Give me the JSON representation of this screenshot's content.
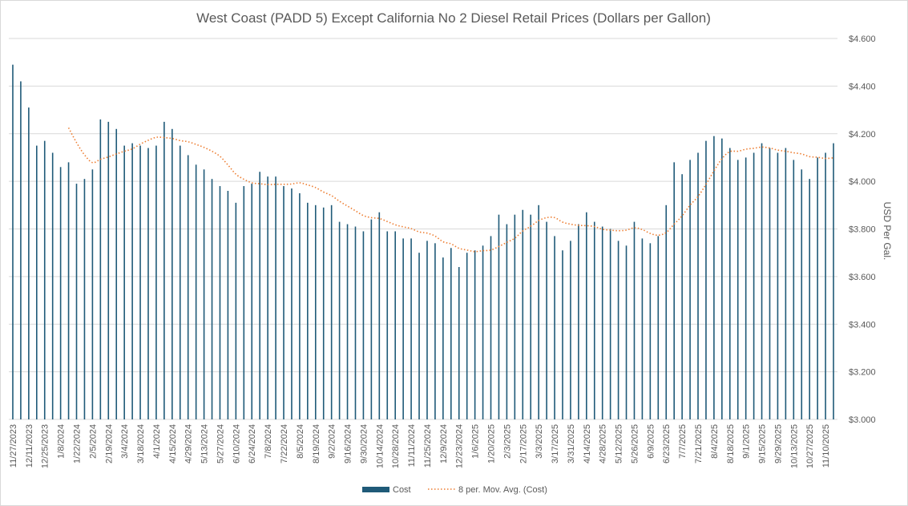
{
  "chart_data": {
    "type": "bar",
    "title": "West Coast (PADD 5) Except California No 2 Diesel Retail Prices (Dollars per Gallon)",
    "ylabel": "USD Per Gal.",
    "xlabel": "",
    "ylim": [
      3.0,
      4.6
    ],
    "y_ticks": [
      "$3.000",
      "$3.200",
      "$3.400",
      "$3.600",
      "$3.800",
      "$4.000",
      "$4.200",
      "$4.400",
      "$4.600"
    ],
    "y_tick_values": [
      3.0,
      3.2,
      3.4,
      3.6,
      3.8,
      4.0,
      4.2,
      4.4,
      4.6
    ],
    "x_tick_labels": [
      "11/27/2023",
      "12/11/2023",
      "12/25/2023",
      "1/8/2024",
      "1/22/2024",
      "2/5/2024",
      "2/19/2024",
      "3/4/2024",
      "3/18/2024",
      "4/1/2024",
      "4/15/2024",
      "4/29/2024",
      "5/13/2024",
      "5/27/2024",
      "6/10/2024",
      "6/24/2024",
      "7/8/2024",
      "7/22/2024",
      "8/5/2024",
      "8/19/2024",
      "9/2/2024",
      "9/16/2024",
      "9/30/2024",
      "10/14/2024",
      "10/28/2024",
      "11/11/2024",
      "11/25/2024",
      "12/9/2024",
      "12/23/2024",
      "1/6/2025",
      "1/20/2025",
      "2/3/2025",
      "2/17/2025",
      "3/3/2025",
      "3/17/2025",
      "3/31/2025",
      "4/14/2025",
      "4/28/2025",
      "5/12/2025",
      "5/26/2025",
      "6/9/2025",
      "6/23/2025",
      "7/7/2025",
      "7/21/2025",
      "8/4/2025",
      "8/18/2025",
      "9/1/2025",
      "9/15/2025",
      "9/29/2025",
      "10/13/2025",
      "10/27/2025",
      "11/10/2025"
    ],
    "legend_position": "bottom",
    "grid": true,
    "series": [
      {
        "name": "Cost",
        "type": "bar",
        "color": "#1f5a78",
        "values": [
          4.49,
          4.42,
          4.31,
          4.15,
          4.17,
          4.12,
          4.06,
          4.08,
          3.99,
          4.01,
          4.05,
          4.26,
          4.25,
          4.22,
          4.15,
          4.16,
          4.15,
          4.14,
          4.15,
          4.25,
          4.22,
          4.15,
          4.11,
          4.07,
          4.05,
          4.01,
          3.98,
          3.96,
          3.91,
          3.98,
          3.99,
          4.04,
          4.02,
          4.02,
          3.98,
          3.97,
          3.95,
          3.91,
          3.9,
          3.89,
          3.9,
          3.83,
          3.82,
          3.81,
          3.79,
          3.84,
          3.87,
          3.79,
          3.79,
          3.76,
          3.76,
          3.7,
          3.75,
          3.74,
          3.68,
          3.72,
          3.64,
          3.7,
          3.71,
          3.73,
          3.77,
          3.86,
          3.82,
          3.86,
          3.88,
          3.86,
          3.9,
          3.83,
          3.77,
          3.71,
          3.75,
          3.82,
          3.87,
          3.83,
          3.81,
          3.8,
          3.75,
          3.73,
          3.83,
          3.76,
          3.74,
          3.77,
          3.9,
          4.08,
          4.03,
          4.09,
          4.12,
          4.17,
          4.19,
          4.18,
          4.14,
          4.09,
          4.1,
          4.12,
          4.16,
          4.14,
          4.12,
          4.14,
          4.09,
          4.05,
          4.01,
          4.1,
          4.12,
          4.16
        ]
      },
      {
        "name": "8 per. Mov. Avg. (Cost)",
        "type": "moving_average",
        "period": 8,
        "color": "#ed7d31"
      }
    ]
  }
}
